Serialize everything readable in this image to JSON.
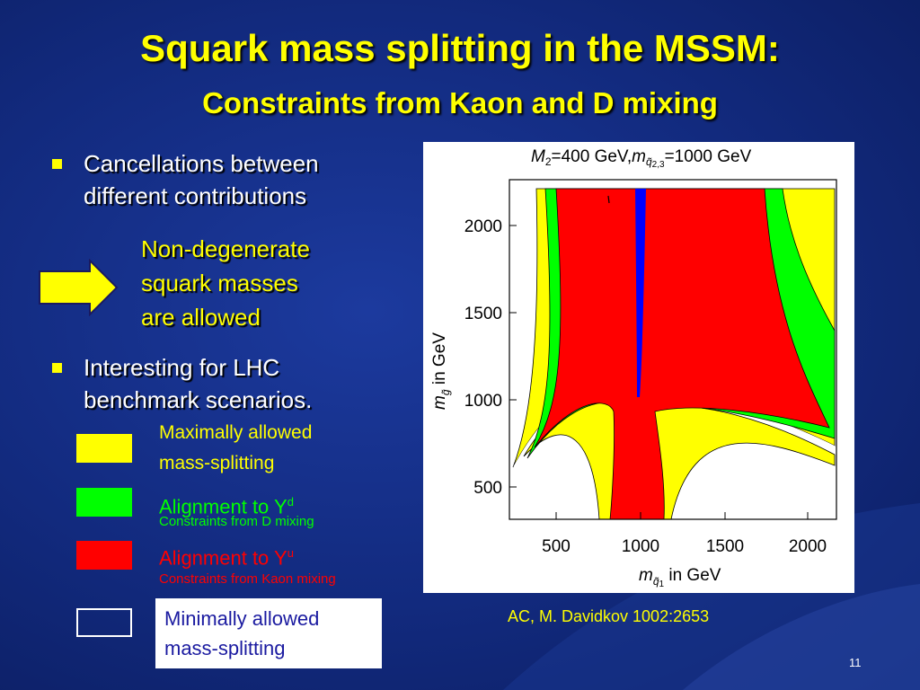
{
  "slide": {
    "title_line1": "Squark mass splitting in the MSSM:",
    "title_line2": "Constraints from Kaon and D mixing",
    "bullets": [
      {
        "line1": "Cancellations between",
        "line2": "different contributions"
      },
      {
        "line1": "Interesting for LHC",
        "line2": "benchmark scenarios."
      }
    ],
    "arrow_note": [
      "Non-degenerate",
      "squark masses",
      "are allowed"
    ],
    "page_number": "11",
    "citation": "AC, M. Davidkov 1002:2653"
  },
  "plot": {
    "header_parts": [
      "M",
      "2",
      "=400 GeV,",
      "m",
      "q̃",
      "2,3",
      "=1000 GeV"
    ],
    "ylabel_parts": [
      "m",
      "g̃",
      " in GeV"
    ],
    "xlabel_parts": [
      "m",
      "q̃",
      "1",
      " in GeV"
    ],
    "xticks": [
      "500",
      "1000",
      "1500",
      "2000"
    ],
    "yticks": [
      "500",
      "1000",
      "1500",
      "2000"
    ],
    "colors": {
      "yellow": "#ffff00",
      "green": "#00ff00",
      "red": "#ff0000",
      "blue": "#0000ff"
    }
  },
  "legend": [
    {
      "color": "#ffff00",
      "text1": "Maximally allowed",
      "text2": "mass-splitting",
      "text_color": "#ffff00"
    },
    {
      "color": "#00ff00",
      "text": "Alignment to Y",
      "sup": "d",
      "sub": "Constraints from D mixing",
      "text_color": "#00ff00"
    },
    {
      "color": "#ff0000",
      "text": "Alignment to Y",
      "sup": "u",
      "sub": "Constraints from Kaon mixing",
      "text_color": "#ff0000"
    },
    {
      "color": "#ffffff",
      "text1": "Minimally allowed",
      "text2": "mass-splitting",
      "text_color": "#1a1aa0"
    }
  ]
}
